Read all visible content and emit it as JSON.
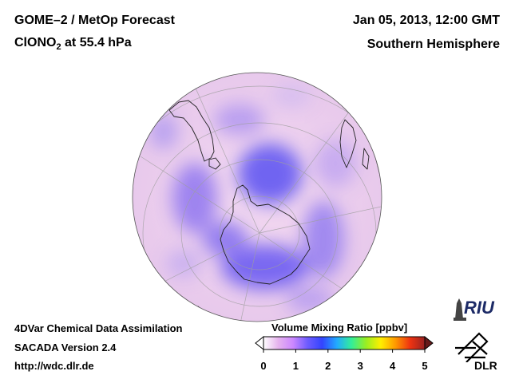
{
  "header": {
    "title_main": "GOME–2 / MetOp Forecast",
    "species": "ClONO",
    "species_sub": "2",
    "species_level": " at 55.4 hPa",
    "date": "Jan 05, 2013, 12:00 GMT",
    "region": "Southern Hemisphere"
  },
  "footer": {
    "assimilation": "4DVar Chemical Data Assimilation",
    "version": "SACADA Version 2.4",
    "url": "http://wdc.dlr.de"
  },
  "colorbar": {
    "title": "Volume Mixing Ratio [ppbv]",
    "min": 0,
    "max": 5,
    "ticks": [
      "0",
      "1",
      "2",
      "3",
      "4",
      "5"
    ],
    "tick_values": [
      0,
      1,
      2,
      3,
      4,
      5
    ],
    "colors": [
      "#ffffff",
      "#e6b3ee",
      "#cc88ff",
      "#6e5cff",
      "#3344ff",
      "#22aaff",
      "#33ee99",
      "#99ee22",
      "#ffee00",
      "#ff9900",
      "#ee3311",
      "#992222"
    ]
  },
  "logos": {
    "riu": "RIU",
    "dlr": "DLR"
  },
  "map": {
    "projection": "orthographic, south polar view",
    "background_color": "#ecd4ee",
    "low_color": "#6a62f0"
  }
}
